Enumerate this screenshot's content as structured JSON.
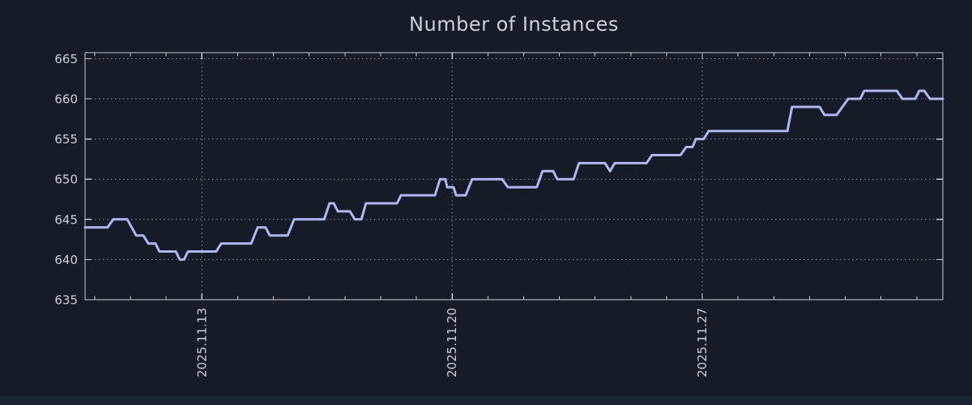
{
  "page": {
    "background": "#151c27",
    "bottom_bar_color": "#1a2433"
  },
  "chart_data": {
    "type": "line",
    "title": "Number of Instances",
    "legend": "none",
    "grid": "dotted",
    "colors": {
      "line": "#b0b6f2",
      "axis": "#c6cad2",
      "grid": "#99a0ac",
      "text": "#ccd0d8"
    },
    "y_axis": {
      "lim": [
        635,
        665.75
      ],
      "ticks": [
        635,
        640,
        645,
        650,
        655,
        660,
        665
      ]
    },
    "x_axis": {
      "unit": "date",
      "lim_days": [
        0,
        24
      ],
      "tick_labels": [
        "2025.11.13",
        "2025.11.20",
        "2025.11.27"
      ],
      "labeled_tick_days": [
        3.27,
        10.27,
        17.27
      ],
      "first_tick_day": 0.27,
      "minor_tick_every_days": 1
    },
    "series": [
      {
        "name": "instances",
        "points": [
          [
            0,
            644
          ],
          [
            0.63,
            644
          ],
          [
            0.79,
            645
          ],
          [
            1.18,
            645
          ],
          [
            1.43,
            643
          ],
          [
            1.63,
            643
          ],
          [
            1.77,
            642
          ],
          [
            1.97,
            642
          ],
          [
            2.08,
            641
          ],
          [
            2.54,
            641
          ],
          [
            2.65,
            640
          ],
          [
            2.77,
            640
          ],
          [
            2.88,
            641
          ],
          [
            3.67,
            641
          ],
          [
            3.81,
            642
          ],
          [
            4.65,
            642
          ],
          [
            4.83,
            644
          ],
          [
            5.05,
            644
          ],
          [
            5.17,
            643
          ],
          [
            5.67,
            643
          ],
          [
            5.85,
            645
          ],
          [
            6.69,
            645
          ],
          [
            6.84,
            647
          ],
          [
            6.96,
            647
          ],
          [
            7.07,
            646
          ],
          [
            7.41,
            646
          ],
          [
            7.55,
            645
          ],
          [
            7.73,
            645
          ],
          [
            7.86,
            647
          ],
          [
            8.73,
            647
          ],
          [
            8.84,
            648
          ],
          [
            9.79,
            648
          ],
          [
            9.93,
            650
          ],
          [
            10.08,
            650
          ],
          [
            10.13,
            649
          ],
          [
            10.31,
            649
          ],
          [
            10.38,
            648
          ],
          [
            10.65,
            648
          ],
          [
            10.83,
            650
          ],
          [
            11.67,
            650
          ],
          [
            11.83,
            649
          ],
          [
            12.64,
            649
          ],
          [
            12.8,
            651
          ],
          [
            13.1,
            651
          ],
          [
            13.21,
            650
          ],
          [
            13.67,
            650
          ],
          [
            13.82,
            652
          ],
          [
            14.55,
            652
          ],
          [
            14.69,
            651
          ],
          [
            14.82,
            652
          ],
          [
            15.71,
            652
          ],
          [
            15.86,
            653
          ],
          [
            16.66,
            653
          ],
          [
            16.82,
            654
          ],
          [
            17.0,
            654
          ],
          [
            17.09,
            655
          ],
          [
            17.31,
            655
          ],
          [
            17.45,
            656
          ],
          [
            19.65,
            656
          ],
          [
            19.78,
            659
          ],
          [
            20.55,
            659
          ],
          [
            20.69,
            658
          ],
          [
            21.03,
            658
          ],
          [
            21.35,
            660
          ],
          [
            21.69,
            660
          ],
          [
            21.8,
            661
          ],
          [
            22.71,
            661
          ],
          [
            22.87,
            660
          ],
          [
            23.23,
            660
          ],
          [
            23.34,
            661
          ],
          [
            23.48,
            661
          ],
          [
            23.64,
            660
          ],
          [
            24,
            660
          ]
        ]
      }
    ]
  }
}
